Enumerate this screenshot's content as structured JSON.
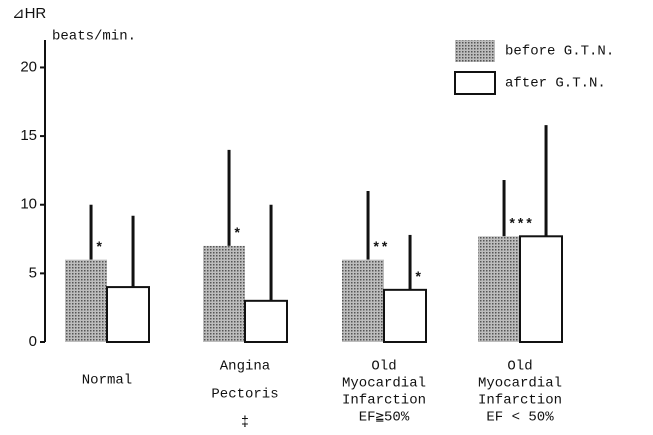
{
  "chart_data": {
    "type": "bar",
    "y_label": "⊿HR",
    "y_unit": "beats/min.",
    "categories": [
      [
        "Normal"
      ],
      [
        "Angina",
        "Pectoris"
      ],
      [
        "Old",
        "Myocardial",
        "Infarction",
        "EF≧50%"
      ],
      [
        "Old",
        "Myocardial",
        "Infarction",
        "EF < 50%"
      ]
    ],
    "series": [
      {
        "name": "before G.T.N.",
        "color": "#8c8c8c",
        "values": [
          6,
          7,
          6,
          7.7
        ],
        "errors": [
          4,
          7,
          5,
          4.1
        ]
      },
      {
        "name": "after G.T.N.",
        "color": "#ffffff",
        "values": [
          4,
          3,
          3.8,
          7.7
        ],
        "errors": [
          5.2,
          7,
          4,
          8.1
        ]
      }
    ],
    "annotations": [
      {
        "text": "*",
        "category": 0,
        "series": 0
      },
      {
        "text": "*",
        "category": 1,
        "series": 0
      },
      {
        "text": "**",
        "category": 2,
        "series": 0
      },
      {
        "text": "*",
        "category": 2,
        "series": 1
      },
      {
        "text": "***",
        "category": 3,
        "series": 0
      },
      {
        "text": "‡",
        "category": 1
      }
    ],
    "ylim": [
      0,
      22
    ],
    "yticks": [
      0,
      5,
      10,
      15,
      20
    ],
    "grid": false,
    "legend": "top-right"
  }
}
